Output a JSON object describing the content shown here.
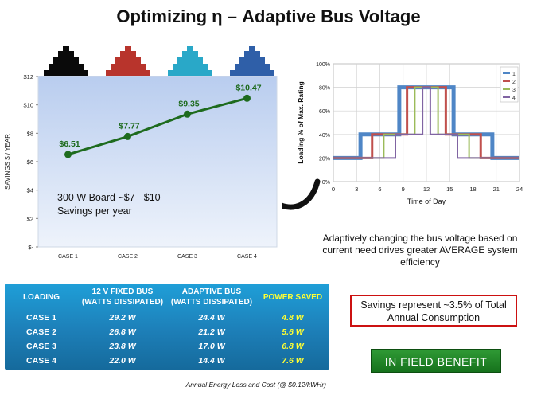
{
  "title": "Optimizing η – Adaptive Bus Voltage",
  "colors": {
    "tower_black": "#0a0a0a",
    "tower_red": "#b8342c",
    "tower_cyan": "#29a8c8",
    "tower_blue": "#2f5fa8",
    "line_green": "#1e6b1e",
    "table_blue": "#1d7fb8",
    "power_saved_yellow": "#ffff33",
    "savings_border_red": "#cc1111",
    "field_benefit_green": "#1f8a27"
  },
  "icons": [
    "black-tower-icon",
    "red-tower-icon",
    "cyan-tower-icon",
    "blue-tower-icon"
  ],
  "annotation": {
    "line1": "300  W Board ~$7  - $10",
    "line2": "Savings per year"
  },
  "description": "Adaptively changing the bus voltage based on current need drives greater AVERAGE system efficiency",
  "table": {
    "headers": [
      "LOADING",
      "12 V FIXED BUS\n(WATTS DISSIPATED)",
      "ADAPTIVE BUS\n(WATTS DISSIPATED)",
      "POWER SAVED"
    ],
    "rows": [
      [
        "CASE 1",
        "29.2  W",
        "24.4  W",
        "4.8  W"
      ],
      [
        "CASE 2",
        "26.8  W",
        "21.2  W",
        "5.6  W"
      ],
      [
        "CASE 3",
        "23.8  W",
        "17.0  W",
        "6.8  W"
      ],
      [
        "CASE 4",
        "22.0  W",
        "14.4  W",
        "7.6  W"
      ]
    ]
  },
  "footnote": "Annual Energy Loss and Cost (@ $0.12/kWHr)",
  "savings_note": "Savings represent ~3.5% of Total Annual Consumption",
  "field_benefit": "IN FIELD BENEFIT",
  "chart_data": [
    {
      "type": "line",
      "categories": [
        "CASE 1",
        "CASE 2",
        "CASE 3",
        "CASE 4"
      ],
      "values": [
        6.51,
        7.77,
        9.35,
        10.47
      ],
      "data_labels": [
        "$6.51",
        "$7.77",
        "$9.35",
        "$10.47"
      ],
      "ylabel": "SAVINGS $ / YEAR",
      "ylim": [
        0,
        12
      ],
      "yticks": [
        "$-",
        "$2",
        "$4",
        "$6",
        "$8",
        "$10",
        "$12"
      ],
      "grid": false
    },
    {
      "type": "line",
      "xlabel": "Time of Day",
      "ylabel": "Loading % of Max. Rating",
      "xlim": [
        0,
        24
      ],
      "ylim": [
        0,
        100
      ],
      "xticks": [
        "0",
        "3",
        "6",
        "9",
        "12",
        "15",
        "18",
        "21",
        "24"
      ],
      "yticks": [
        "0%",
        "20%",
        "40%",
        "60%",
        "80%",
        "100%"
      ],
      "grid": true,
      "legend": "top-right",
      "series": [
        {
          "name": "1",
          "color": "#4f86c6",
          "x": [
            0,
            3.5,
            3.5,
            8.5,
            8.5,
            15.5,
            15.5,
            20.5,
            20.5,
            24
          ],
          "y": [
            20,
            20,
            40,
            40,
            80,
            80,
            40,
            40,
            20,
            20
          ]
        },
        {
          "name": "2",
          "color": "#c0504d",
          "x": [
            0,
            5,
            5,
            9.5,
            9.5,
            14.5,
            14.5,
            19,
            19,
            24
          ],
          "y": [
            20,
            20,
            40,
            40,
            80,
            80,
            40,
            40,
            20,
            20
          ]
        },
        {
          "name": "3",
          "color": "#9bbb59",
          "x": [
            0,
            6.5,
            6.5,
            10.5,
            10.5,
            13.5,
            13.5,
            17.5,
            17.5,
            24
          ],
          "y": [
            20,
            20,
            40,
            40,
            80,
            80,
            40,
            40,
            20,
            20
          ]
        },
        {
          "name": "4",
          "color": "#8064a2",
          "x": [
            0,
            8,
            8,
            11.5,
            11.5,
            12.5,
            12.5,
            16,
            16,
            24
          ],
          "y": [
            20,
            20,
            40,
            40,
            80,
            80,
            40,
            40,
            20,
            20
          ]
        }
      ]
    }
  ]
}
